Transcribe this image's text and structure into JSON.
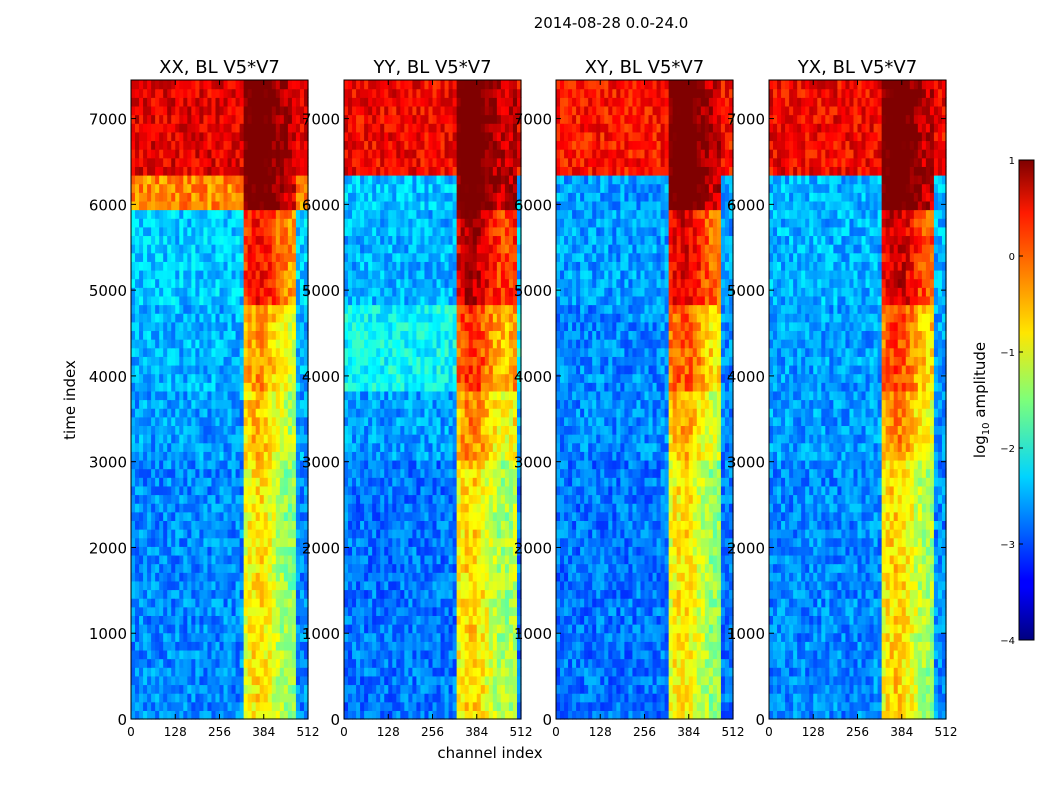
{
  "figure": {
    "suptitle": "2014-08-28 0.0-24.0",
    "xlabel": "channel index",
    "ylabel": "time index"
  },
  "colorbar": {
    "label_prefix": "log",
    "label_sub": "10",
    "label_suffix": " amplitude",
    "ticks": [
      -4,
      -3,
      -2,
      -1,
      0,
      1
    ],
    "tick_labels": [
      "−4",
      "−3",
      "−2",
      "−1",
      "0",
      "1"
    ],
    "range": [
      -4,
      1
    ],
    "colormap": "jet"
  },
  "chart_data": [
    {
      "type": "heatmap",
      "title": "XX, BL V5*V7",
      "x_ticks": [
        0,
        128,
        256,
        384,
        512
      ],
      "y_ticks": [
        0,
        1000,
        2000,
        3000,
        4000,
        5000,
        6000,
        7000
      ],
      "xlim": [
        0,
        512
      ],
      "ylim": [
        0,
        7450
      ],
      "channel_band": [
        322,
        480
      ],
      "bands": [
        {
          "y0": 0,
          "y1": 3000,
          "bg": -2.7,
          "band": -1.1
        },
        {
          "y0": 3000,
          "y1": 3800,
          "bg": -2.6,
          "band": -0.9
        },
        {
          "y0": 3800,
          "y1": 4800,
          "bg": -2.5,
          "band": -0.7
        },
        {
          "y0": 4800,
          "y1": 5900,
          "bg": -2.4,
          "band": 0.0
        },
        {
          "y0": 5900,
          "y1": 6300,
          "bg": -0.3,
          "band": 0.9
        },
        {
          "y0": 6300,
          "y1": 7450,
          "bg": 0.5,
          "band": 1.0
        }
      ]
    },
    {
      "type": "heatmap",
      "title": "YY, BL V5*V7",
      "x_ticks": [
        0,
        128,
        256,
        384,
        512
      ],
      "y_ticks": [
        0,
        1000,
        2000,
        3000,
        4000,
        5000,
        6000,
        7000
      ],
      "xlim": [
        0,
        512
      ],
      "ylim": [
        0,
        7450
      ],
      "channel_band": [
        322,
        500
      ],
      "bands": [
        {
          "y0": 0,
          "y1": 3000,
          "bg": -2.8,
          "band": -1.0
        },
        {
          "y0": 3000,
          "y1": 3800,
          "bg": -2.6,
          "band": -0.6
        },
        {
          "y0": 3800,
          "y1": 4800,
          "bg": -2.1,
          "band": -0.2
        },
        {
          "y0": 4800,
          "y1": 5900,
          "bg": -2.5,
          "band": 0.4
        },
        {
          "y0": 5900,
          "y1": 6300,
          "bg": -2.4,
          "band": 1.0
        },
        {
          "y0": 6300,
          "y1": 7450,
          "bg": 0.4,
          "band": 1.0
        }
      ]
    },
    {
      "type": "heatmap",
      "title": "XY, BL V5*V7",
      "x_ticks": [
        0,
        128,
        256,
        384,
        512
      ],
      "y_ticks": [
        0,
        1000,
        2000,
        3000,
        4000,
        5000,
        6000,
        7000
      ],
      "xlim": [
        0,
        512
      ],
      "ylim": [
        0,
        7450
      ],
      "channel_band": [
        322,
        480
      ],
      "bands": [
        {
          "y0": 0,
          "y1": 3000,
          "bg": -2.8,
          "band": -1.1
        },
        {
          "y0": 3000,
          "y1": 3800,
          "bg": -2.7,
          "band": -0.8
        },
        {
          "y0": 3800,
          "y1": 4800,
          "bg": -2.7,
          "band": -0.4
        },
        {
          "y0": 4800,
          "y1": 5900,
          "bg": -2.6,
          "band": 0.2
        },
        {
          "y0": 5900,
          "y1": 6300,
          "bg": -2.6,
          "band": 1.0
        },
        {
          "y0": 6300,
          "y1": 7450,
          "bg": 0.3,
          "band": 1.0
        }
      ]
    },
    {
      "type": "heatmap",
      "title": "YX, BL V5*V7",
      "x_ticks": [
        0,
        128,
        256,
        384,
        512
      ],
      "y_ticks": [
        0,
        1000,
        2000,
        3000,
        4000,
        5000,
        6000,
        7000
      ],
      "xlim": [
        0,
        512
      ],
      "ylim": [
        0,
        7450
      ],
      "channel_band": [
        322,
        480
      ],
      "bands": [
        {
          "y0": 0,
          "y1": 3000,
          "bg": -2.7,
          "band": -1.0
        },
        {
          "y0": 3000,
          "y1": 3800,
          "bg": -2.6,
          "band": -0.6
        },
        {
          "y0": 3800,
          "y1": 4800,
          "bg": -2.6,
          "band": -0.3
        },
        {
          "y0": 4800,
          "y1": 5900,
          "bg": -2.5,
          "band": 0.3
        },
        {
          "y0": 5900,
          "y1": 6300,
          "bg": -2.5,
          "band": 1.0
        },
        {
          "y0": 6300,
          "y1": 7450,
          "bg": 0.4,
          "band": 1.0
        }
      ]
    }
  ]
}
